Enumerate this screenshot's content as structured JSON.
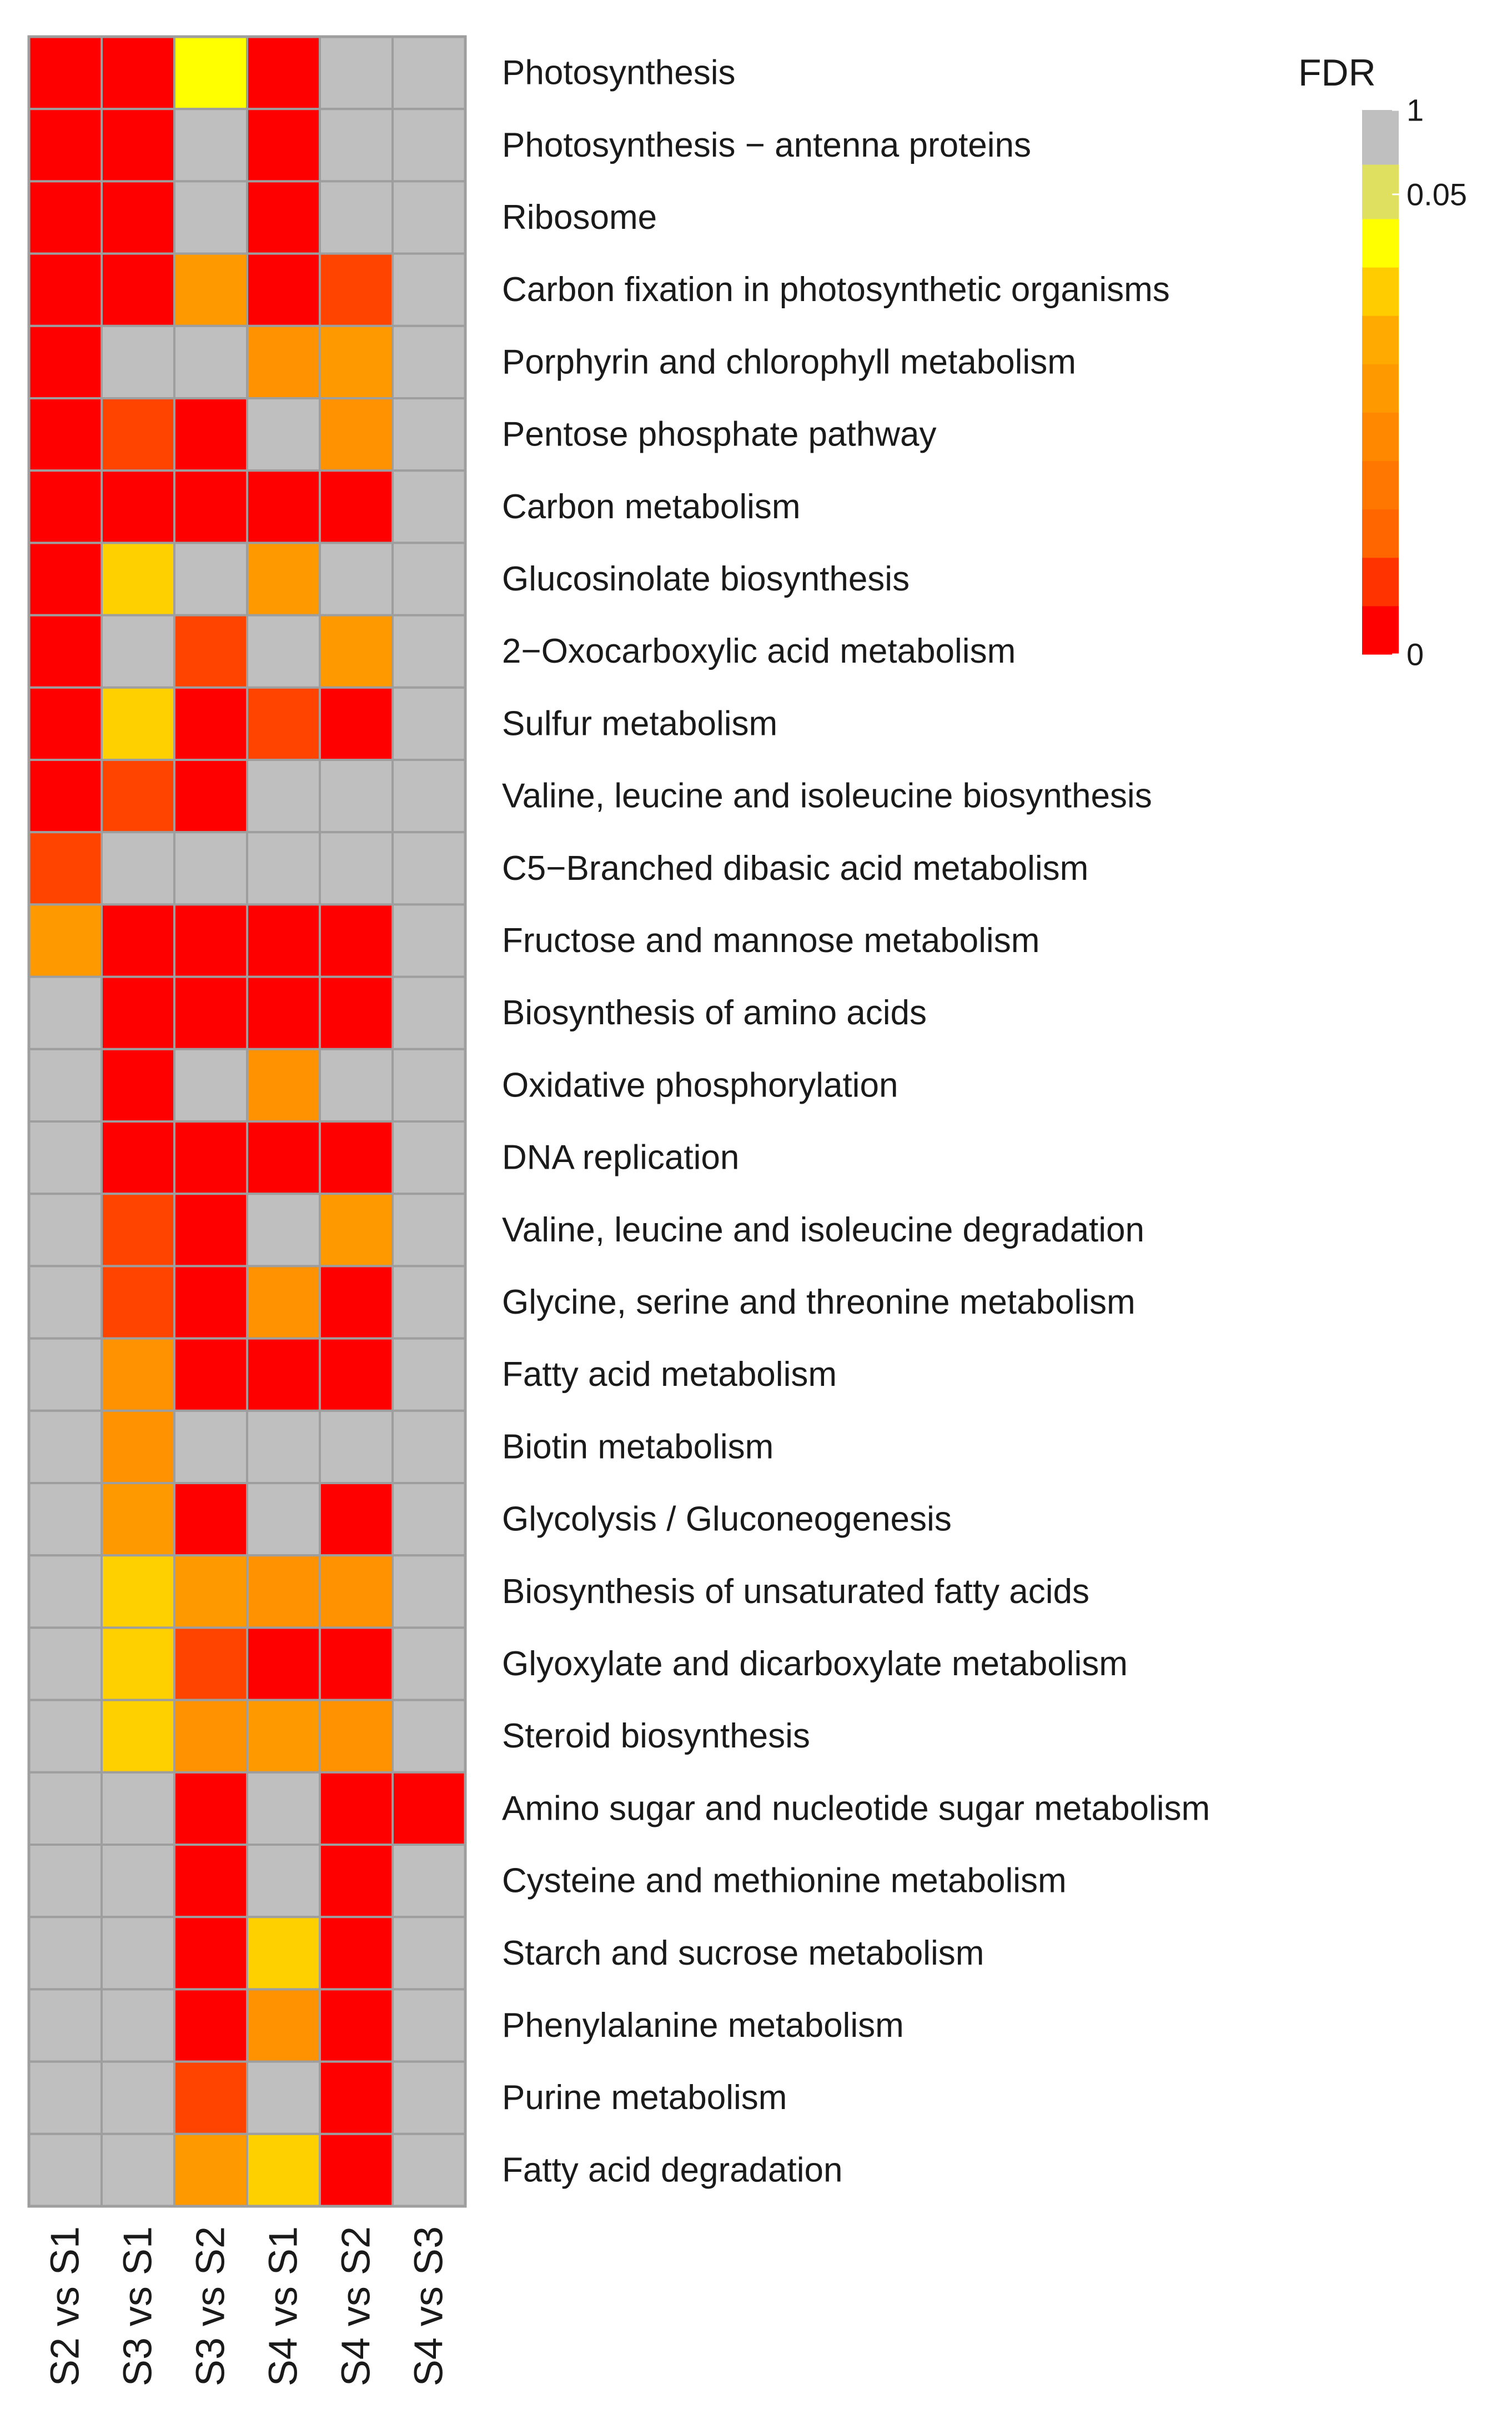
{
  "chart_data": {
    "type": "heatmap",
    "title": "",
    "columns": [
      "S2 vs S1",
      "S3 vs S1",
      "S3 vs S2",
      "S4 vs S1",
      "S4 vs S2",
      "S4 vs S3"
    ],
    "rows": [
      "Photosynthesis",
      "Photosynthesis − antenna proteins",
      "Ribosome",
      "Carbon fixation in photosynthetic organisms",
      "Porphyrin and chlorophyll metabolism",
      "Pentose phosphate pathway",
      "Carbon metabolism",
      "Glucosinolate biosynthesis",
      "2−Oxocarboxylic acid metabolism",
      "Sulfur metabolism",
      "Valine, leucine and isoleucine biosynthesis",
      "C5−Branched dibasic acid metabolism",
      "Fructose and mannose metabolism",
      "Biosynthesis of amino acids",
      "Oxidative phosphorylation",
      "DNA replication",
      "Valine, leucine and isoleucine degradation",
      "Glycine, serine and threonine metabolism",
      "Fatty acid metabolism",
      "Biotin metabolism",
      "Glycolysis / Gluconeogenesis",
      "Biosynthesis of unsaturated fatty acids",
      "Glyoxylate and dicarboxylate metabolism",
      "Steroid biosynthesis",
      "Amino sugar and nucleotide sugar metabolism",
      "Cysteine and methionine metabolism",
      "Starch and sucrose metabolism",
      "Phenylalanine metabolism",
      "Purine metabolism",
      "Fatty acid degradation"
    ],
    "fdr_values": [
      [
        0.001,
        0.001,
        0.045,
        0.001,
        1,
        1
      ],
      [
        0.001,
        0.001,
        1,
        0.001,
        1,
        1
      ],
      [
        0.001,
        0.001,
        1,
        0.001,
        1,
        1
      ],
      [
        0.001,
        0.001,
        0.028,
        0.001,
        0.01,
        1
      ],
      [
        0.001,
        1,
        1,
        0.025,
        0.028,
        1
      ],
      [
        0.001,
        0.01,
        0.001,
        1,
        0.025,
        1
      ],
      [
        0.001,
        0.001,
        0.001,
        0.001,
        0.001,
        1
      ],
      [
        0.001,
        0.038,
        1,
        0.028,
        1,
        1
      ],
      [
        0.001,
        1,
        0.01,
        1,
        0.028,
        1
      ],
      [
        0.001,
        0.038,
        0.001,
        0.01,
        0.001,
        1
      ],
      [
        0.001,
        0.01,
        0.001,
        1,
        1,
        1
      ],
      [
        0.01,
        1,
        1,
        1,
        1,
        1
      ],
      [
        0.028,
        0.001,
        0.001,
        0.001,
        0.001,
        1
      ],
      [
        1,
        0.001,
        0.001,
        0.001,
        0.001,
        1
      ],
      [
        1,
        0.001,
        1,
        0.025,
        1,
        1
      ],
      [
        1,
        0.001,
        0.001,
        0.001,
        0.001,
        1
      ],
      [
        1,
        0.01,
        0.001,
        1,
        0.028,
        1
      ],
      [
        1,
        0.01,
        0.001,
        0.025,
        0.001,
        1
      ],
      [
        1,
        0.025,
        0.001,
        0.001,
        0.001,
        1
      ],
      [
        1,
        0.025,
        1,
        1,
        1,
        1
      ],
      [
        1,
        0.028,
        0.001,
        1,
        0.001,
        1
      ],
      [
        1,
        0.038,
        0.028,
        0.025,
        0.025,
        1
      ],
      [
        1,
        0.038,
        0.01,
        0.001,
        0.001,
        1
      ],
      [
        1,
        0.038,
        0.025,
        0.028,
        0.025,
        1
      ],
      [
        1,
        1,
        0.001,
        1,
        0.001,
        0.001
      ],
      [
        1,
        1,
        0.001,
        1,
        0.001,
        1
      ],
      [
        1,
        1,
        0.001,
        0.038,
        0.001,
        1
      ],
      [
        1,
        1,
        0.001,
        0.025,
        0.001,
        1
      ],
      [
        1,
        1,
        0.01,
        1,
        0.001,
        1
      ],
      [
        1,
        1,
        0.028,
        0.038,
        0.001,
        1
      ]
    ],
    "legend": {
      "title": "FDR",
      "position": "top-right",
      "ticks": [
        "1",
        "0.05",
        "0"
      ],
      "bands": [
        {
          "color": "#ff0000",
          "min": 0,
          "max": 0.005
        },
        {
          "color": "#ff3300",
          "min": 0.005,
          "max": 0.01
        },
        {
          "color": "#ff6600",
          "min": 0.01,
          "max": 0.015
        },
        {
          "color": "#ff7700",
          "min": 0.015,
          "max": 0.02
        },
        {
          "color": "#ff8800",
          "min": 0.02,
          "max": 0.025
        },
        {
          "color": "#ff9900",
          "min": 0.025,
          "max": 0.03
        },
        {
          "color": "#ffaa00",
          "min": 0.03,
          "max": 0.035
        },
        {
          "color": "#ffcc00",
          "min": 0.035,
          "max": 0.04
        },
        {
          "color": "#ffff00",
          "min": 0.04,
          "max": 0.05
        },
        {
          "color": "#e0e060",
          "min": 0.05,
          "max": 0.5
        },
        {
          "color": "#bfbfbf",
          "min": 0.5,
          "max": 1
        }
      ]
    },
    "cell_colors": {
      "0.001": "#ff0000",
      "0.01": "#ff4400",
      "0.025": "#ff9200",
      "0.028": "#ff9900",
      "0.038": "#ffd000",
      "0.045": "#ffff00",
      "1": "#bfbfbf"
    },
    "grid_color": "#9e9e9e"
  }
}
